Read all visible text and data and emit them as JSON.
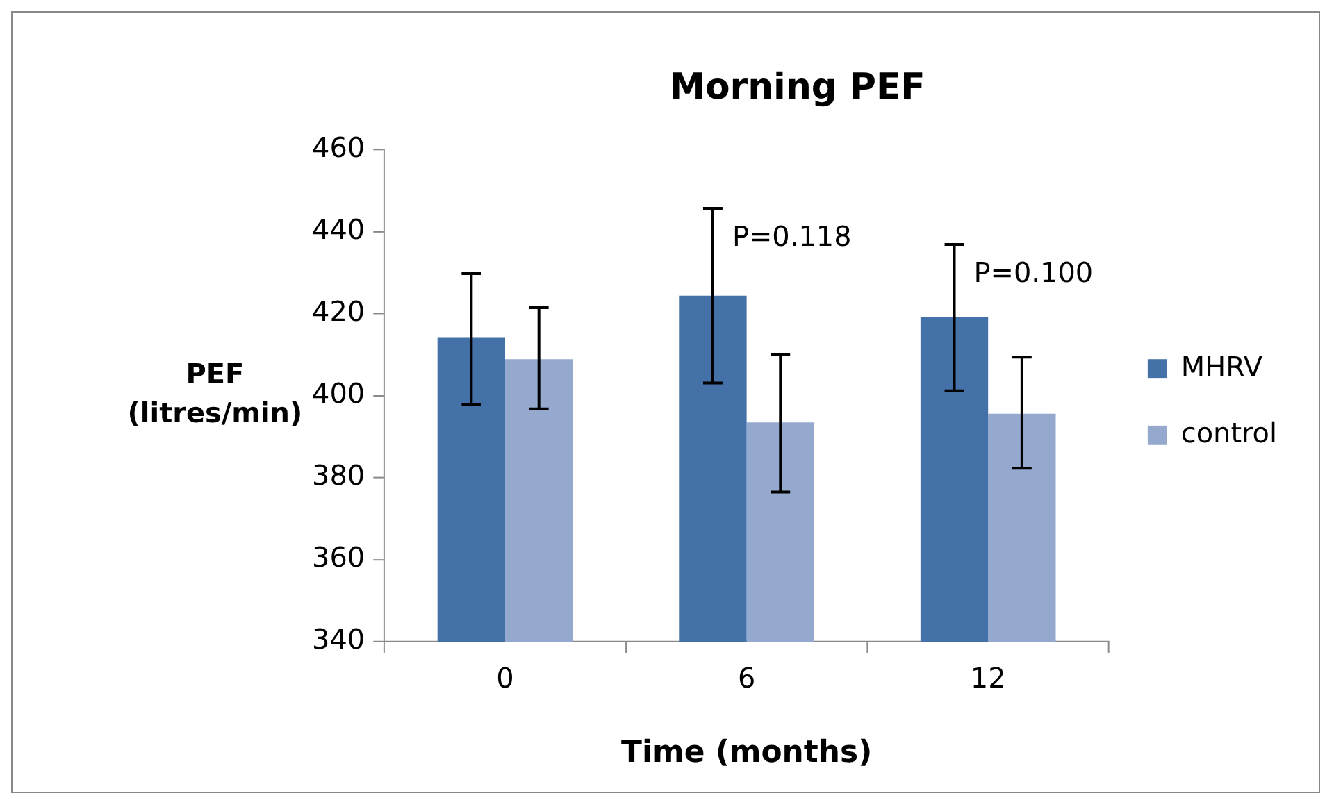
{
  "chart_data": {
    "type": "bar",
    "title": "Morning PEF",
    "xlabel": "Time (months)",
    "ylabel": "PEF (litres/min)",
    "categories": [
      "0",
      "6",
      "12"
    ],
    "series": [
      {
        "name": "MHRV",
        "color": "#4472a8",
        "values": [
          414.3,
          424.4,
          419.1
        ],
        "errors": [
          [
            397.8,
            429.8
          ],
          [
            403.1,
            445.7
          ],
          [
            401.2,
            436.9
          ]
        ]
      },
      {
        "name": "control",
        "color": "#95a9cf",
        "values": [
          408.9,
          393.5,
          395.6
        ],
        "errors": [
          [
            396.8,
            421.5
          ],
          [
            376.5,
            410
          ],
          [
            382.3,
            409.4
          ]
        ]
      }
    ],
    "ylim": [
      340,
      460
    ],
    "yticks": [
      340,
      360,
      380,
      400,
      420,
      440,
      460
    ],
    "grid": false,
    "legend": "right",
    "annotations": [
      "P=0.118",
      "P=0.100"
    ]
  }
}
